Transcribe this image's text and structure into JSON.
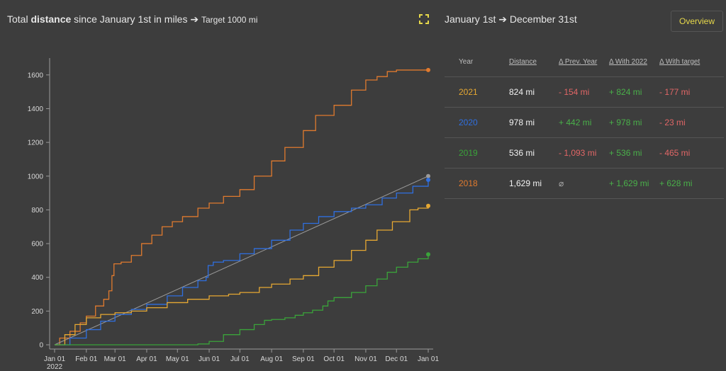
{
  "header": {
    "title_prefix": "Total ",
    "title_bold": "distance",
    "title_suffix": " since January 1st in miles",
    "title_arrow": " ➔ ",
    "title_target": "Target 1000 mi",
    "range_title": "January 1st ➔ December 31st",
    "overview_label": "Overview",
    "fullscreen_icon": "fullscreen-icon"
  },
  "table": {
    "headers": {
      "year": "Year",
      "distance": "Distance",
      "prev_year": "Δ Prev. Year",
      "with_2022": "Δ With 2022",
      "with_target": "Δ With target"
    },
    "rows": [
      {
        "year": "2021",
        "color": "#e6a832",
        "distance": "824 mi",
        "prev_year": "- 154 mi",
        "with_2022": "+ 824 mi",
        "with_target": "- 177 mi"
      },
      {
        "year": "2020",
        "color": "#2f6fe0",
        "distance": "978 mi",
        "prev_year": "+ 442 mi",
        "with_2022": "+ 978 mi",
        "with_target": "- 23 mi"
      },
      {
        "year": "2019",
        "color": "#3aa33a",
        "distance": "536 mi",
        "prev_year": "- 1,093 mi",
        "with_2022": "+ 536 mi",
        "with_target": "- 465 mi"
      },
      {
        "year": "2018",
        "color": "#e07a2e",
        "distance": "1,629 mi",
        "prev_year": "⌀",
        "with_2022": "+ 1,629 mi",
        "with_target": "+ 628 mi"
      }
    ]
  },
  "chart_data": {
    "type": "line",
    "ylim": [
      0,
      1700
    ],
    "yticks": [
      0,
      200,
      400,
      600,
      800,
      1000,
      1200,
      1400,
      1600
    ],
    "xlim": [
      0,
      365
    ],
    "xticks": [
      {
        "day": 0,
        "label": "Jan 01",
        "sublabel": "2022"
      },
      {
        "day": 31,
        "label": "Feb 01"
      },
      {
        "day": 59,
        "label": "Mar 01"
      },
      {
        "day": 90,
        "label": "Apr 01"
      },
      {
        "day": 120,
        "label": "May 01"
      },
      {
        "day": 151,
        "label": "Jun 01"
      },
      {
        "day": 181,
        "label": "Jul 01"
      },
      {
        "day": 212,
        "label": "Aug 01"
      },
      {
        "day": 243,
        "label": "Sep 01"
      },
      {
        "day": 273,
        "label": "Oct 01"
      },
      {
        "day": 304,
        "label": "Nov 01"
      },
      {
        "day": 334,
        "label": "Dec 01"
      },
      {
        "day": 365,
        "label": "Jan 01"
      }
    ],
    "series": [
      {
        "year": "2018",
        "color": "#e07a2e",
        "points": [
          [
            0,
            0
          ],
          [
            5,
            40
          ],
          [
            15,
            80
          ],
          [
            25,
            130
          ],
          [
            31,
            170
          ],
          [
            40,
            230
          ],
          [
            48,
            270
          ],
          [
            53,
            320
          ],
          [
            56,
            410
          ],
          [
            58,
            480
          ],
          [
            65,
            490
          ],
          [
            75,
            530
          ],
          [
            85,
            600
          ],
          [
            95,
            650
          ],
          [
            105,
            700
          ],
          [
            115,
            730
          ],
          [
            125,
            760
          ],
          [
            140,
            810
          ],
          [
            151,
            840
          ],
          [
            165,
            880
          ],
          [
            181,
            920
          ],
          [
            195,
            1000
          ],
          [
            212,
            1090
          ],
          [
            225,
            1170
          ],
          [
            243,
            1270
          ],
          [
            255,
            1360
          ],
          [
            273,
            1420
          ],
          [
            290,
            1510
          ],
          [
            304,
            1570
          ],
          [
            315,
            1590
          ],
          [
            325,
            1620
          ],
          [
            334,
            1629
          ],
          [
            365,
            1629
          ]
        ]
      },
      {
        "year": "Target",
        "color": "#9a9a9a",
        "points": [
          [
            0,
            0
          ],
          [
            365,
            1000
          ]
        ]
      },
      {
        "year": "2020",
        "color": "#2f6fe0",
        "points": [
          [
            0,
            0
          ],
          [
            15,
            40
          ],
          [
            31,
            90
          ],
          [
            45,
            140
          ],
          [
            59,
            180
          ],
          [
            75,
            210
          ],
          [
            90,
            240
          ],
          [
            110,
            290
          ],
          [
            125,
            340
          ],
          [
            140,
            380
          ],
          [
            148,
            400
          ],
          [
            150,
            470
          ],
          [
            155,
            490
          ],
          [
            165,
            500
          ],
          [
            181,
            540
          ],
          [
            195,
            570
          ],
          [
            212,
            620
          ],
          [
            230,
            680
          ],
          [
            243,
            720
          ],
          [
            258,
            760
          ],
          [
            273,
            790
          ],
          [
            290,
            810
          ],
          [
            304,
            830
          ],
          [
            320,
            870
          ],
          [
            334,
            900
          ],
          [
            350,
            940
          ],
          [
            365,
            978
          ]
        ]
      },
      {
        "year": "2021",
        "color": "#e6a832",
        "points": [
          [
            0,
            0
          ],
          [
            10,
            60
          ],
          [
            20,
            120
          ],
          [
            31,
            160
          ],
          [
            45,
            180
          ],
          [
            59,
            190
          ],
          [
            75,
            200
          ],
          [
            90,
            220
          ],
          [
            110,
            250
          ],
          [
            130,
            270
          ],
          [
            151,
            290
          ],
          [
            170,
            300
          ],
          [
            181,
            310
          ],
          [
            200,
            340
          ],
          [
            212,
            360
          ],
          [
            230,
            390
          ],
          [
            243,
            410
          ],
          [
            258,
            460
          ],
          [
            273,
            500
          ],
          [
            290,
            560
          ],
          [
            304,
            620
          ],
          [
            315,
            680
          ],
          [
            330,
            730
          ],
          [
            345,
            730
          ],
          [
            347,
            800
          ],
          [
            355,
            810
          ],
          [
            365,
            824
          ]
        ]
      },
      {
        "year": "2019",
        "color": "#3aa33a",
        "points": [
          [
            0,
            0
          ],
          [
            130,
            0
          ],
          [
            140,
            5
          ],
          [
            151,
            20
          ],
          [
            165,
            60
          ],
          [
            181,
            90
          ],
          [
            195,
            120
          ],
          [
            205,
            145
          ],
          [
            212,
            150
          ],
          [
            225,
            160
          ],
          [
            235,
            175
          ],
          [
            243,
            190
          ],
          [
            252,
            205
          ],
          [
            262,
            230
          ],
          [
            267,
            260
          ],
          [
            273,
            280
          ],
          [
            290,
            310
          ],
          [
            304,
            350
          ],
          [
            315,
            390
          ],
          [
            325,
            430
          ],
          [
            334,
            460
          ],
          [
            345,
            490
          ],
          [
            355,
            510
          ],
          [
            365,
            536
          ]
        ]
      }
    ]
  }
}
